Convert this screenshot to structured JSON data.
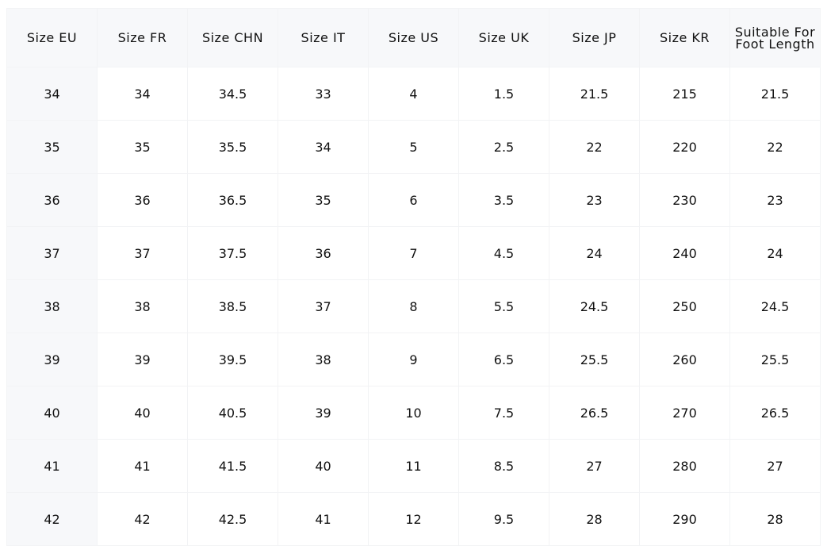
{
  "headers": [
    "Size EU",
    "Size FR",
    "Size CHN",
    "Size IT",
    "Size US",
    "Size UK",
    "Size JP",
    "Size KR",
    "Suitable For Foot Length"
  ],
  "rows": [
    [
      "34",
      "34",
      "34.5",
      "33",
      "4",
      "1.5",
      "21.5",
      "215",
      "21.5"
    ],
    [
      "35",
      "35",
      "35.5",
      "34",
      "5",
      "2.5",
      "22",
      "220",
      "22"
    ],
    [
      "36",
      "36",
      "36.5",
      "35",
      "6",
      "3.5",
      "23",
      "230",
      "23"
    ],
    [
      "37",
      "37",
      "37.5",
      "36",
      "7",
      "4.5",
      "24",
      "240",
      "24"
    ],
    [
      "38",
      "38",
      "38.5",
      "37",
      "8",
      "5.5",
      "24.5",
      "250",
      "24.5"
    ],
    [
      "39",
      "39",
      "39.5",
      "38",
      "9",
      "6.5",
      "25.5",
      "260",
      "25.5"
    ],
    [
      "40",
      "40",
      "40.5",
      "39",
      "10",
      "7.5",
      "26.5",
      "270",
      "26.5"
    ],
    [
      "41",
      "41",
      "41.5",
      "40",
      "11",
      "8.5",
      "27",
      "280",
      "27"
    ],
    [
      "42",
      "42",
      "42.5",
      "41",
      "12",
      "9.5",
      "28",
      "290",
      "28"
    ]
  ],
  "colors": {
    "header_bg": "#f7f8fa",
    "first_col_bg": "#f7f8fa",
    "text": "#111111"
  }
}
